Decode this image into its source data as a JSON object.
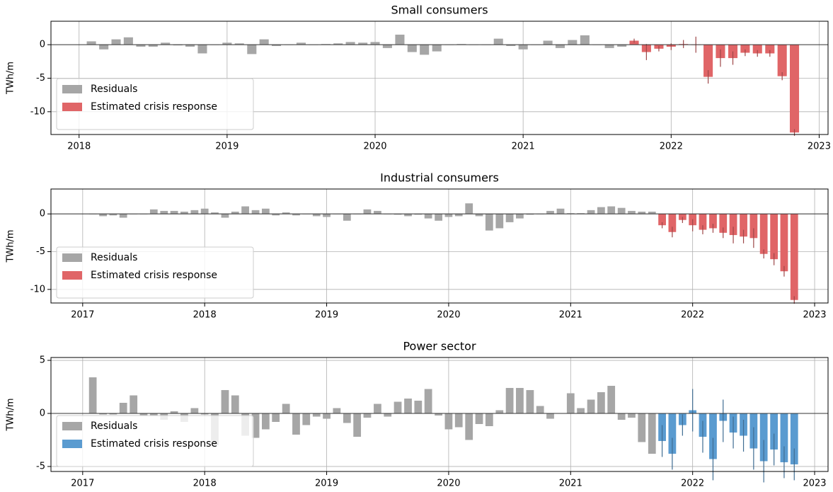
{
  "chart_data": [
    {
      "type": "bar",
      "title": "Small consumers",
      "ylabel": "TWh/m",
      "grid": true,
      "legend": "lower left",
      "xlim": [
        2017.81,
        2023.06
      ],
      "xticks": [
        2018,
        2019,
        2020,
        2021,
        2022,
        2023
      ],
      "ylim": [
        -13.4,
        3.5
      ],
      "yticks": [
        -10,
        -5,
        0
      ],
      "series": [
        {
          "name": "Residuals",
          "color": "#a6a6a6",
          "x": [
            2018.083,
            2018.167,
            2018.25,
            2018.333,
            2018.417,
            2018.5,
            2018.583,
            2018.667,
            2018.75,
            2018.833,
            2018.917,
            2019,
            2019.083,
            2019.167,
            2019.25,
            2019.333,
            2019.417,
            2019.5,
            2019.583,
            2019.667,
            2019.75,
            2019.833,
            2019.917,
            2020,
            2020.083,
            2020.167,
            2020.25,
            2020.333,
            2020.417,
            2020.5,
            2020.583,
            2020.667,
            2020.75,
            2020.833,
            2020.917,
            2021,
            2021.083,
            2021.167,
            2021.25,
            2021.333,
            2021.417,
            2021.5,
            2021.583,
            2021.667
          ],
          "values": [
            0.5,
            -0.7,
            0.8,
            1.1,
            -0.3,
            -0.3,
            0.3,
            -0.1,
            -0.3,
            -1.3,
            0,
            0.3,
            0.2,
            -1.4,
            0.8,
            -0.2,
            0,
            0.3,
            0,
            0.1,
            0.2,
            0.4,
            0.3,
            0.4,
            -0.5,
            1.5,
            -1.1,
            -1.5,
            -1.0,
            0,
            0.1,
            0,
            0,
            0.9,
            -0.2,
            -0.7,
            0,
            0.6,
            -0.5,
            0.7,
            1.4,
            0,
            -0.5,
            -0.3
          ]
        },
        {
          "name": "Estimated crisis response",
          "color": "#e06567",
          "x": [
            2021.75,
            2021.833,
            2021.917,
            2022,
            2022.083,
            2022.167,
            2022.25,
            2022.333,
            2022.417,
            2022.5,
            2022.583,
            2022.667,
            2022.75,
            2022.833
          ],
          "values": [
            0.6,
            -1.1,
            -0.6,
            -0.3,
            0.1,
            0,
            -4.8,
            -2.0,
            -2.0,
            -1.2,
            -1.3,
            -1.3,
            -4.7,
            -13.1
          ],
          "errors": [
            0.3,
            1.2,
            0.4,
            0.5,
            0.6,
            1.2,
            1.0,
            1.3,
            1.0,
            0.5,
            0.5,
            0.5,
            0.6,
            0.5
          ]
        }
      ]
    },
    {
      "type": "bar",
      "title": "Industrial consumers",
      "ylabel": "TWh/m",
      "grid": true,
      "legend": "lower left",
      "xlim": [
        2016.74,
        2023.11
      ],
      "xticks": [
        2017,
        2018,
        2019,
        2020,
        2021,
        2022,
        2023
      ],
      "ylim": [
        -11.8,
        3.3
      ],
      "yticks": [
        -10,
        -5,
        0
      ],
      "series": [
        {
          "name": "Residuals",
          "color": "#a6a6a6",
          "x": [
            2017.083,
            2017.167,
            2017.25,
            2017.333,
            2017.417,
            2017.5,
            2017.583,
            2017.667,
            2017.75,
            2017.833,
            2017.917,
            2018,
            2018.083,
            2018.167,
            2018.25,
            2018.333,
            2018.417,
            2018.5,
            2018.583,
            2018.667,
            2018.75,
            2018.833,
            2018.917,
            2019,
            2019.083,
            2019.167,
            2019.25,
            2019.333,
            2019.417,
            2019.5,
            2019.583,
            2019.667,
            2019.75,
            2019.833,
            2019.917,
            2020,
            2020.083,
            2020.167,
            2020.25,
            2020.333,
            2020.417,
            2020.5,
            2020.583,
            2020.667,
            2020.75,
            2020.833,
            2020.917,
            2021,
            2021.083,
            2021.167,
            2021.25,
            2021.333,
            2021.417,
            2021.5,
            2021.583,
            2021.667
          ],
          "values": [
            0,
            -0.3,
            -0.2,
            -0.5,
            0,
            0,
            0.6,
            0.4,
            0.4,
            0.3,
            0.5,
            0.7,
            0.2,
            -0.5,
            0.3,
            1.0,
            0.5,
            0.7,
            -0.2,
            0.2,
            -0.2,
            0,
            -0.3,
            -0.4,
            0,
            -0.9,
            0,
            0.6,
            0.4,
            0,
            -0.1,
            -0.3,
            -0.1,
            -0.6,
            -0.9,
            -0.4,
            -0.3,
            1.4,
            -0.3,
            -2.2,
            -1.9,
            -1.1,
            -0.6,
            -0.1,
            0,
            0.4,
            0.7,
            0.1,
            0.1,
            0.5,
            0.9,
            1.0,
            0.8,
            0.4,
            0.3,
            0.3
          ]
        },
        {
          "name": "Estimated crisis response",
          "color": "#e06567",
          "x": [
            2021.75,
            2021.833,
            2021.917,
            2022,
            2022.083,
            2022.167,
            2022.25,
            2022.333,
            2022.417,
            2022.5,
            2022.583,
            2022.667,
            2022.75,
            2022.833
          ],
          "values": [
            -1.5,
            -2.4,
            -0.8,
            -1.5,
            -2.1,
            -1.9,
            -2.5,
            -2.8,
            -3.0,
            -3.2,
            -5.3,
            -6.0,
            -7.6,
            -11.4
          ],
          "errors": [
            0.4,
            0.7,
            0.4,
            0.8,
            0.6,
            0.6,
            0.7,
            1.1,
            0.9,
            1.3,
            0.6,
            0.8,
            0.7,
            0.5
          ]
        }
      ]
    },
    {
      "type": "bar",
      "title": "Power sector",
      "ylabel": "TWh/m",
      "grid": true,
      "legend": "lower left",
      "xlim": [
        2016.74,
        2023.11
      ],
      "xticks": [
        2017,
        2018,
        2019,
        2020,
        2021,
        2022,
        2023
      ],
      "ylim": [
        -5.47,
        5.27
      ],
      "yticks": [
        -5,
        0,
        5
      ],
      "series": [
        {
          "name": "Residuals",
          "color": "#a6a6a6",
          "x": [
            2017.083,
            2017.167,
            2017.25,
            2017.333,
            2017.417,
            2017.5,
            2017.583,
            2017.667,
            2017.75,
            2017.833,
            2017.917,
            2018,
            2018.083,
            2018.167,
            2018.25,
            2018.333,
            2018.417,
            2018.5,
            2018.583,
            2018.667,
            2018.75,
            2018.833,
            2018.917,
            2019,
            2019.083,
            2019.167,
            2019.25,
            2019.333,
            2019.417,
            2019.5,
            2019.583,
            2019.667,
            2019.75,
            2019.833,
            2019.917,
            2020,
            2020.083,
            2020.167,
            2020.25,
            2020.333,
            2020.417,
            2020.5,
            2020.583,
            2020.667,
            2020.75,
            2020.833,
            2020.917,
            2021,
            2021.083,
            2021.167,
            2021.25,
            2021.333,
            2021.417,
            2021.5,
            2021.583,
            2021.667
          ],
          "values": [
            3.4,
            -0.1,
            -0.1,
            1.0,
            1.7,
            -0.2,
            -0.2,
            -0.6,
            0.2,
            -0.8,
            0.5,
            -0.1,
            -3.0,
            2.2,
            1.7,
            -2.1,
            -2.3,
            -1.5,
            -0.8,
            0.9,
            -2.0,
            -1.1,
            -0.3,
            -0.5,
            0.5,
            -0.9,
            -2.2,
            -0.4,
            0.9,
            -0.3,
            1.1,
            1.4,
            1.2,
            2.3,
            -0.2,
            -1.5,
            -1.3,
            -2.5,
            -1.0,
            -1.2,
            0.3,
            2.4,
            2.4,
            2.2,
            0.7,
            -0.5,
            0,
            1.9,
            0.5,
            1.3,
            2.0,
            2.6,
            -0.6,
            -0.4,
            -2.7,
            -3.8
          ]
        },
        {
          "name": "Estimated crisis response",
          "color": "#5a9bd0",
          "x": [
            2021.75,
            2021.833,
            2021.917,
            2022,
            2022.083,
            2022.167,
            2022.25,
            2022.333,
            2022.417,
            2022.5,
            2022.583,
            2022.667,
            2022.75,
            2022.833
          ],
          "values": [
            -2.6,
            -3.8,
            -1.1,
            0.3,
            -2.2,
            -4.3,
            -0.7,
            -1.8,
            -2.1,
            -3.3,
            -4.5,
            -3.4,
            -4.6,
            -4.8
          ],
          "errors": [
            1.5,
            1.5,
            1.0,
            2.0,
            1.5,
            2.0,
            2.0,
            1.5,
            1.5,
            2.0,
            2.0,
            1.5,
            1.5,
            1.5
          ]
        }
      ]
    }
  ]
}
